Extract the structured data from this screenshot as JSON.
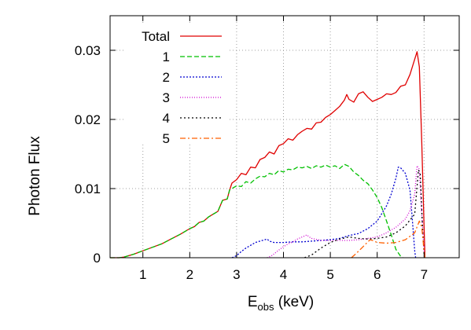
{
  "chart_data": {
    "type": "line",
    "title": "",
    "xlabel": "E",
    "xlabel_sub": "obs",
    "xlabel_unit": " (keV)",
    "ylabel": "Photon Flux",
    "xlim": [
      0.3,
      7.75
    ],
    "ylim": [
      0,
      0.035
    ],
    "grid": true,
    "legend_position": "top-left",
    "x_ticks": [
      1,
      2,
      3,
      4,
      5,
      6,
      7
    ],
    "x_tick_labels": [
      "1",
      "2",
      "3",
      "4",
      "5",
      "6",
      "7"
    ],
    "y_ticks": [
      0,
      0.01,
      0.02,
      0.03
    ],
    "y_tick_labels": [
      "0",
      "0.01",
      "0.02",
      "0.03"
    ],
    "series": [
      {
        "name": "Total",
        "color": "#e00000",
        "dash": "",
        "points": [
          [
            0.3,
            0
          ],
          [
            0.5,
            0
          ],
          [
            0.6,
            0.0001
          ],
          [
            0.8,
            0.0005
          ],
          [
            1.0,
            0.001
          ],
          [
            1.2,
            0.0015
          ],
          [
            1.4,
            0.002
          ],
          [
            1.6,
            0.0027
          ],
          [
            1.8,
            0.0034
          ],
          [
            2.0,
            0.0042
          ],
          [
            2.1,
            0.0045
          ],
          [
            2.2,
            0.0051
          ],
          [
            2.3,
            0.0053
          ],
          [
            2.4,
            0.0059
          ],
          [
            2.5,
            0.0063
          ],
          [
            2.6,
            0.0067
          ],
          [
            2.7,
            0.0083
          ],
          [
            2.8,
            0.0085
          ],
          [
            2.85,
            0.0098
          ],
          [
            2.9,
            0.0108
          ],
          [
            3.0,
            0.0113
          ],
          [
            3.1,
            0.0122
          ],
          [
            3.2,
            0.012
          ],
          [
            3.3,
            0.0131
          ],
          [
            3.4,
            0.013
          ],
          [
            3.5,
            0.0142
          ],
          [
            3.6,
            0.0145
          ],
          [
            3.7,
            0.0153
          ],
          [
            3.8,
            0.015
          ],
          [
            3.9,
            0.0162
          ],
          [
            4.0,
            0.0165
          ],
          [
            4.1,
            0.0172
          ],
          [
            4.2,
            0.017
          ],
          [
            4.3,
            0.0178
          ],
          [
            4.4,
            0.0183
          ],
          [
            4.5,
            0.0187
          ],
          [
            4.6,
            0.0186
          ],
          [
            4.7,
            0.0195
          ],
          [
            4.8,
            0.0196
          ],
          [
            4.9,
            0.0203
          ],
          [
            5.0,
            0.0207
          ],
          [
            5.1,
            0.0213
          ],
          [
            5.2,
            0.0219
          ],
          [
            5.3,
            0.0228
          ],
          [
            5.35,
            0.0236
          ],
          [
            5.4,
            0.0229
          ],
          [
            5.5,
            0.0225
          ],
          [
            5.6,
            0.0237
          ],
          [
            5.7,
            0.024
          ],
          [
            5.8,
            0.0232
          ],
          [
            5.9,
            0.0226
          ],
          [
            6.0,
            0.0229
          ],
          [
            6.1,
            0.0232
          ],
          [
            6.2,
            0.0237
          ],
          [
            6.3,
            0.0236
          ],
          [
            6.4,
            0.0239
          ],
          [
            6.5,
            0.0248
          ],
          [
            6.6,
            0.025
          ],
          [
            6.7,
            0.0265
          ],
          [
            6.8,
            0.0287
          ],
          [
            6.85,
            0.0298
          ],
          [
            6.9,
            0.0276
          ],
          [
            6.95,
            0.017
          ],
          [
            7.0,
            0.0045
          ],
          [
            7.02,
            0
          ]
        ]
      },
      {
        "name": "1",
        "color": "#00c000",
        "dash": "6,3",
        "points": [
          [
            0.3,
            0
          ],
          [
            0.5,
            0
          ],
          [
            0.6,
            0.0001
          ],
          [
            0.8,
            0.0005
          ],
          [
            1.0,
            0.001
          ],
          [
            1.2,
            0.0015
          ],
          [
            1.4,
            0.002
          ],
          [
            1.6,
            0.0027
          ],
          [
            1.8,
            0.0034
          ],
          [
            2.0,
            0.0042
          ],
          [
            2.1,
            0.0045
          ],
          [
            2.2,
            0.0051
          ],
          [
            2.3,
            0.0053
          ],
          [
            2.4,
            0.0059
          ],
          [
            2.5,
            0.0063
          ],
          [
            2.6,
            0.0067
          ],
          [
            2.7,
            0.0083
          ],
          [
            2.8,
            0.0085
          ],
          [
            2.85,
            0.0098
          ],
          [
            2.9,
            0.01
          ],
          [
            3.0,
            0.0104
          ],
          [
            3.1,
            0.0103
          ],
          [
            3.2,
            0.011
          ],
          [
            3.3,
            0.0108
          ],
          [
            3.4,
            0.0114
          ],
          [
            3.5,
            0.0118
          ],
          [
            3.6,
            0.0117
          ],
          [
            3.7,
            0.0122
          ],
          [
            3.8,
            0.012
          ],
          [
            3.9,
            0.0126
          ],
          [
            4.0,
            0.0124
          ],
          [
            4.1,
            0.0128
          ],
          [
            4.2,
            0.0127
          ],
          [
            4.3,
            0.0131
          ],
          [
            4.4,
            0.013
          ],
          [
            4.5,
            0.0132
          ],
          [
            4.6,
            0.0129
          ],
          [
            4.7,
            0.0133
          ],
          [
            4.8,
            0.0131
          ],
          [
            4.9,
            0.0134
          ],
          [
            5.0,
            0.0131
          ],
          [
            5.1,
            0.0133
          ],
          [
            5.2,
            0.0129
          ],
          [
            5.3,
            0.0135
          ],
          [
            5.4,
            0.0132
          ],
          [
            5.5,
            0.0124
          ],
          [
            5.6,
            0.0119
          ],
          [
            5.7,
            0.0112
          ],
          [
            5.8,
            0.0107
          ],
          [
            5.9,
            0.0098
          ],
          [
            6.0,
            0.0087
          ],
          [
            6.1,
            0.0072
          ],
          [
            6.2,
            0.0053
          ],
          [
            6.3,
            0.0033
          ],
          [
            6.4,
            0.0012
          ],
          [
            6.5,
            0.0002
          ],
          [
            6.55,
            0
          ]
        ]
      },
      {
        "name": "2",
        "color": "#0000d0",
        "dash": "2,2",
        "points": [
          [
            2.9,
            0
          ],
          [
            3.0,
            0.0003
          ],
          [
            3.1,
            0.0009
          ],
          [
            3.2,
            0.0014
          ],
          [
            3.3,
            0.0018
          ],
          [
            3.4,
            0.0022
          ],
          [
            3.5,
            0.0024
          ],
          [
            3.6,
            0.0026
          ],
          [
            3.65,
            0.0027
          ],
          [
            3.7,
            0.0024
          ],
          [
            3.8,
            0.0022
          ],
          [
            3.9,
            0.0022
          ],
          [
            4.0,
            0.0022
          ],
          [
            4.2,
            0.0023
          ],
          [
            4.4,
            0.0023
          ],
          [
            4.6,
            0.0024
          ],
          [
            4.8,
            0.0025
          ],
          [
            5.0,
            0.0026
          ],
          [
            5.2,
            0.0028
          ],
          [
            5.4,
            0.0032
          ],
          [
            5.6,
            0.0035
          ],
          [
            5.8,
            0.0042
          ],
          [
            6.0,
            0.0053
          ],
          [
            6.2,
            0.0075
          ],
          [
            6.3,
            0.0092
          ],
          [
            6.4,
            0.0115
          ],
          [
            6.45,
            0.0131
          ],
          [
            6.5,
            0.013
          ],
          [
            6.6,
            0.0122
          ],
          [
            6.7,
            0.0098
          ],
          [
            6.75,
            0.0055
          ],
          [
            6.8,
            0.001
          ],
          [
            6.82,
            0
          ]
        ]
      },
      {
        "name": "3",
        "color": "#d000d0",
        "dash": "1,2",
        "points": [
          [
            3.65,
            0
          ],
          [
            3.75,
            0.0003
          ],
          [
            3.9,
            0.0011
          ],
          [
            4.0,
            0.0016
          ],
          [
            4.1,
            0.002
          ],
          [
            4.2,
            0.0023
          ],
          [
            4.3,
            0.0027
          ],
          [
            4.4,
            0.003
          ],
          [
            4.5,
            0.0033
          ],
          [
            4.55,
            0.003
          ],
          [
            4.6,
            0.0028
          ],
          [
            4.8,
            0.0025
          ],
          [
            5.0,
            0.0025
          ],
          [
            5.2,
            0.0025
          ],
          [
            5.4,
            0.0025
          ],
          [
            5.6,
            0.0026
          ],
          [
            5.8,
            0.0028
          ],
          [
            6.0,
            0.003
          ],
          [
            6.2,
            0.0036
          ],
          [
            6.4,
            0.0044
          ],
          [
            6.6,
            0.0056
          ],
          [
            6.7,
            0.0068
          ],
          [
            6.8,
            0.0092
          ],
          [
            6.85,
            0.0133
          ],
          [
            6.9,
            0.0128
          ],
          [
            6.95,
            0.0065
          ],
          [
            7.0,
            0.001
          ],
          [
            7.02,
            0
          ]
        ]
      },
      {
        "name": "4",
        "color": "#000000",
        "dash": "2,3",
        "points": [
          [
            4.45,
            0
          ],
          [
            4.6,
            0.0004
          ],
          [
            4.8,
            0.0014
          ],
          [
            5.0,
            0.0022
          ],
          [
            5.2,
            0.0027
          ],
          [
            5.4,
            0.003
          ],
          [
            5.6,
            0.0028
          ],
          [
            5.8,
            0.0027
          ],
          [
            6.0,
            0.0028
          ],
          [
            6.2,
            0.003
          ],
          [
            6.4,
            0.0036
          ],
          [
            6.6,
            0.0046
          ],
          [
            6.8,
            0.0063
          ],
          [
            6.88,
            0.0127
          ],
          [
            6.92,
            0.012
          ],
          [
            6.97,
            0.004
          ],
          [
            7.0,
            0.0005
          ],
          [
            7.02,
            0
          ]
        ]
      },
      {
        "name": "5",
        "color": "#ff6000",
        "dash": "7,3,2,3",
        "points": [
          [
            5.45,
            0
          ],
          [
            5.55,
            0.0006
          ],
          [
            5.7,
            0.0016
          ],
          [
            5.8,
            0.0023
          ],
          [
            5.85,
            0.0026
          ],
          [
            5.9,
            0.0025
          ],
          [
            6.0,
            0.0022
          ],
          [
            6.2,
            0.0021
          ],
          [
            6.4,
            0.0022
          ],
          [
            6.6,
            0.0026
          ],
          [
            6.8,
            0.0036
          ],
          [
            6.9,
            0.0053
          ],
          [
            6.95,
            0.0045
          ],
          [
            7.0,
            0.001
          ],
          [
            7.02,
            0
          ]
        ]
      }
    ]
  }
}
